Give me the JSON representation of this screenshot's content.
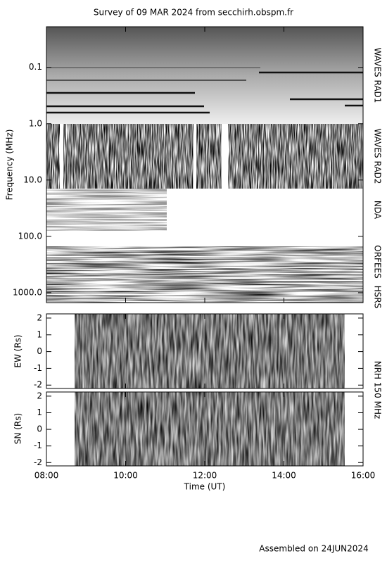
{
  "footer": "Assembled on 24JUN2024",
  "chart_data": [
    {
      "type": "spectrogram",
      "title": "Survey of 09 MAR 2024 from secchirh.obspm.fr",
      "ylabel": "Frequency (MHz)",
      "log_y": true,
      "y_inverted": true,
      "ylim": [
        0.019,
        1500
      ],
      "yticks": [
        0.1,
        {
          "value": 1,
          "label": "1.0"
        },
        {
          "value": 10,
          "label": "10.0"
        },
        {
          "value": 100,
          "label": "100.0"
        },
        {
          "value": 1000,
          "label": "1000.0"
        }
      ],
      "instrument_labels": [
        "WAVES RAD1",
        "WAVES RAD2",
        "NDA",
        "ORFEES",
        "HSRS"
      ]
    },
    {
      "type": "image",
      "ylabel": "EW (Rs)",
      "ylim": [
        -2.2,
        2.25
      ],
      "yticks": [
        2,
        1,
        0,
        -1,
        -2
      ],
      "instrument_label": "NRH 150 MHz"
    },
    {
      "type": "image",
      "ylabel": "SN (Rs)",
      "ylim": [
        -2.2,
        2.25
      ],
      "yticks": [
        2,
        1,
        0,
        -1,
        -2
      ],
      "xlabel": "Time (UT)",
      "xlim": [
        8,
        16
      ],
      "xticks": [
        {
          "value": 8,
          "label": "08:00"
        },
        {
          "value": 10,
          "label": "10:00"
        },
        {
          "value": 12,
          "label": "12:00"
        },
        {
          "value": 14,
          "label": "14:00"
        },
        {
          "value": 16,
          "label": "16:00"
        }
      ]
    }
  ]
}
